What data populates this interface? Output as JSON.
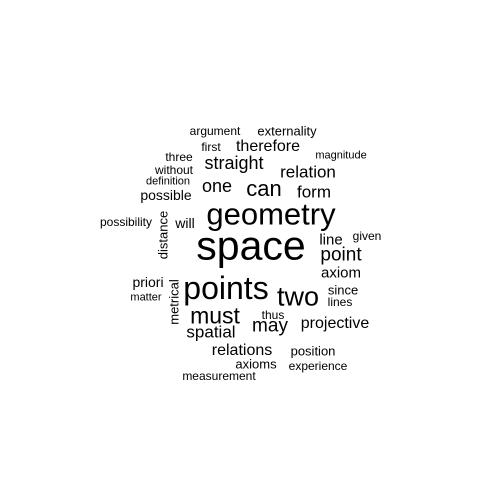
{
  "word_cloud": {
    "text_color": "#000000",
    "background": "#ffffff",
    "words": [
      {
        "text": "space",
        "orientation": "horizontal"
      },
      {
        "text": "geometry",
        "orientation": "horizontal"
      },
      {
        "text": "points",
        "orientation": "horizontal"
      },
      {
        "text": "two",
        "orientation": "horizontal"
      },
      {
        "text": "must",
        "orientation": "horizontal"
      },
      {
        "text": "can",
        "orientation": "horizontal"
      },
      {
        "text": "point",
        "orientation": "horizontal"
      },
      {
        "text": "may",
        "orientation": "horizontal"
      },
      {
        "text": "relation",
        "orientation": "horizontal"
      },
      {
        "text": "one",
        "orientation": "horizontal"
      },
      {
        "text": "straight",
        "orientation": "horizontal"
      },
      {
        "text": "form",
        "orientation": "horizontal"
      },
      {
        "text": "therefore",
        "orientation": "horizontal"
      },
      {
        "text": "spatial",
        "orientation": "horizontal"
      },
      {
        "text": "projective",
        "orientation": "horizontal"
      },
      {
        "text": "relations",
        "orientation": "horizontal"
      },
      {
        "text": "line",
        "orientation": "horizontal"
      },
      {
        "text": "axiom",
        "orientation": "horizontal"
      },
      {
        "text": "possible",
        "orientation": "horizontal"
      },
      {
        "text": "will",
        "orientation": "horizontal"
      },
      {
        "text": "priori",
        "orientation": "horizontal"
      },
      {
        "text": "distance",
        "orientation": "vertical"
      },
      {
        "text": "externality",
        "orientation": "horizontal"
      },
      {
        "text": "argument",
        "orientation": "horizontal"
      },
      {
        "text": "three",
        "orientation": "horizontal"
      },
      {
        "text": "since",
        "orientation": "horizontal"
      },
      {
        "text": "lines",
        "orientation": "horizontal"
      },
      {
        "text": "thus",
        "orientation": "horizontal"
      },
      {
        "text": "axioms",
        "orientation": "horizontal"
      },
      {
        "text": "position",
        "orientation": "horizontal"
      },
      {
        "text": "given",
        "orientation": "horizontal"
      },
      {
        "text": "first",
        "orientation": "horizontal"
      },
      {
        "text": "without",
        "orientation": "horizontal"
      },
      {
        "text": "definition",
        "orientation": "horizontal"
      },
      {
        "text": "magnitude",
        "orientation": "horizontal"
      },
      {
        "text": "possibility",
        "orientation": "horizontal"
      },
      {
        "text": "matter",
        "orientation": "horizontal"
      },
      {
        "text": "metrical",
        "orientation": "vertical"
      },
      {
        "text": "experience",
        "orientation": "horizontal"
      },
      {
        "text": "measurement",
        "orientation": "horizontal"
      }
    ]
  }
}
